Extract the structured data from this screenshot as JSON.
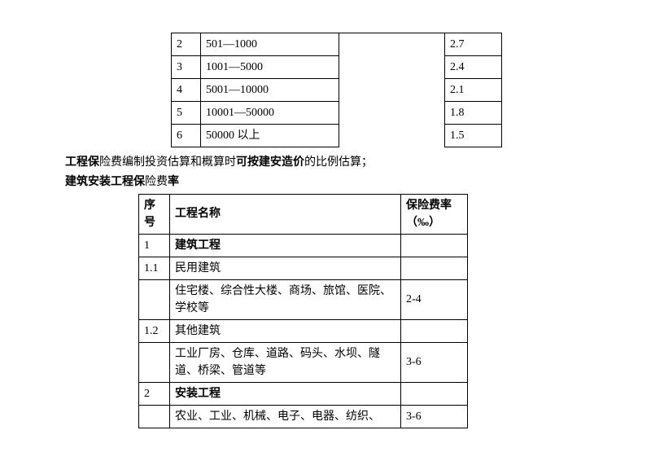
{
  "table1": {
    "rows": [
      {
        "idx": "2",
        "range": "501—1000",
        "rate": "2.7"
      },
      {
        "idx": "3",
        "range": "1001—5000",
        "rate": "2.4"
      },
      {
        "idx": "4",
        "range": "5001—10000",
        "rate": "2.1"
      },
      {
        "idx": "5",
        "range": "10001—50000",
        "rate": "1.8"
      },
      {
        "idx": "6",
        "range": "50000 以上",
        "rate": "1.5"
      }
    ]
  },
  "line1": {
    "part1": "工程保",
    "part2": "险费",
    "part3": "编制投资",
    "part4": "估算和概算时",
    "part5": "可按",
    "part6": "建安造价",
    "part7": "的比例估算；"
  },
  "line2": {
    "part1": "建筑安装工程保",
    "part2": "险费",
    "part3": "率"
  },
  "table2": {
    "header": {
      "col1a": "序",
      "col1b": "号",
      "col2": "工程名称",
      "col3a": "保险费率",
      "col3b": "（‰）"
    },
    "rows": [
      {
        "idx": "1",
        "name": "建筑工程",
        "rate": ""
      },
      {
        "idx": "1.1",
        "name": "民用建筑",
        "rate": ""
      },
      {
        "idx": "",
        "name_a": "住宅楼、",
        "name_b": "综",
        "name_c": "合性大楼、商",
        "name_d": "场",
        "name_e": "、旅",
        "name_f": "馆",
        "name_g": "、医院、",
        "name_h": "学校等",
        "rate": "2-4"
      },
      {
        "idx": "1.2",
        "name": "其他建筑",
        "rate": ""
      },
      {
        "idx": "",
        "name_a": "工业",
        "name_b": "厂",
        "name_c": "房、",
        "name_d": "仓库",
        "name_e": "、道路、",
        "name_f": "码头",
        "name_g": "、水",
        "name_h": "坝",
        "name_i": "、隧",
        "name_j": "道、桥梁、管道等",
        "rate": "3-6"
      },
      {
        "idx": "2",
        "name": "安装工程",
        "rate": ""
      },
      {
        "idx": "",
        "name_a": "农业、",
        "name_b": "工",
        "name_c": "业、机械、",
        "name_d": "电",
        "name_e": "子、",
        "name_f": "电",
        "name_g": "器、",
        "name_h": "纺织",
        "name_i": "、",
        "rate": "3-6"
      }
    ]
  }
}
